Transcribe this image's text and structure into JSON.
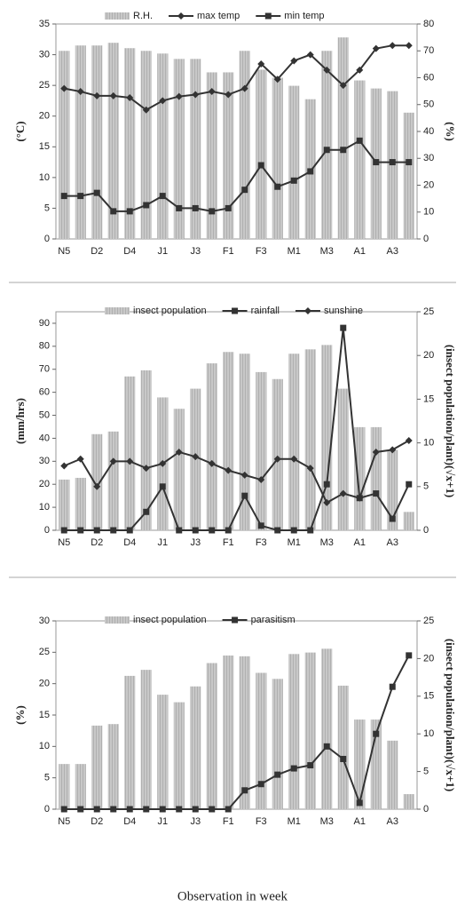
{
  "chart_data": [
    {
      "type": "combo",
      "categories": [
        "N5",
        null,
        "D2",
        null,
        "D4",
        null,
        "J1",
        null,
        "J3",
        null,
        "F1",
        null,
        "F3",
        null,
        "M1",
        null,
        "M3",
        null,
        "A1",
        null,
        "A3",
        null
      ],
      "y_label": "(°C)",
      "y2_label": "(%)",
      "ylim": [
        0,
        35
      ],
      "yticks": [
        0,
        5,
        10,
        15,
        20,
        25,
        30,
        35
      ],
      "y2lim": [
        0,
        80
      ],
      "y2ticks": [
        0,
        10,
        20,
        30,
        40,
        50,
        60,
        70,
        80
      ],
      "series": [
        {
          "name": "R.H.",
          "kind": "bar",
          "axis": "y2",
          "color": "#b5b5b5",
          "values": [
            70,
            72,
            72,
            73,
            71,
            70,
            69,
            67,
            67,
            62,
            62,
            70,
            63,
            60,
            57,
            52,
            70,
            75,
            59,
            56,
            55,
            47
          ]
        },
        {
          "name": "max temp",
          "kind": "line",
          "marker": "diamond",
          "color": "#333333",
          "values": [
            24.5,
            24,
            23.3,
            23.3,
            23,
            21,
            22.5,
            23.2,
            23.5,
            24,
            23.5,
            24.5,
            28.5,
            26,
            29,
            30,
            27.5,
            25,
            27.5,
            31,
            31.5,
            31.5
          ]
        },
        {
          "name": "min temp",
          "kind": "line",
          "marker": "square",
          "color": "#333333",
          "values": [
            7,
            7,
            7.5,
            4.5,
            4.5,
            5.5,
            7,
            5,
            5,
            4.5,
            5,
            8,
            12,
            8.5,
            9.5,
            11,
            14.5,
            14.5,
            16,
            12.5,
            12.5,
            12.5
          ]
        }
      ]
    },
    {
      "type": "combo",
      "categories": [
        "N5",
        null,
        "D2",
        null,
        "D4",
        null,
        "J1",
        null,
        "J3",
        null,
        "F1",
        null,
        "F3",
        null,
        "M1",
        null,
        "M3",
        null,
        "A1",
        null,
        "A3",
        null
      ],
      "y_label": "(mm/hrs)",
      "y2_label": "(insect population/plant)(√x+1)",
      "ylim": [
        0,
        95
      ],
      "yticks": [
        0,
        10,
        20,
        30,
        40,
        50,
        60,
        70,
        80,
        90
      ],
      "y2lim": [
        0,
        25
      ],
      "y2ticks": [
        0,
        5,
        10,
        15,
        20,
        25
      ],
      "series": [
        {
          "name": "insect population",
          "kind": "bar",
          "axis": "y2",
          "color": "#b5b5b5",
          "values": [
            5.8,
            6,
            11,
            11.3,
            17.6,
            18.3,
            15.2,
            13.9,
            16.2,
            19.1,
            20.4,
            20.2,
            18.1,
            17.3,
            20.2,
            20.7,
            21.2,
            16.2,
            11.8,
            11.8,
            9.2,
            2.1
          ]
        },
        {
          "name": "rainfall",
          "kind": "line",
          "marker": "square",
          "color": "#333333",
          "values": [
            0,
            0,
            0,
            0,
            0,
            8,
            19,
            0,
            0,
            0,
            0,
            15,
            2,
            0,
            0,
            0,
            20,
            88,
            14,
            16,
            5,
            20
          ]
        },
        {
          "name": "sunshine",
          "kind": "line",
          "marker": "diamond",
          "color": "#333333",
          "values": [
            28,
            31,
            19,
            30,
            30,
            27,
            29,
            34,
            32,
            29,
            26,
            24,
            22,
            31,
            31,
            27,
            12,
            16,
            14,
            34,
            35,
            39
          ]
        }
      ]
    },
    {
      "type": "combo",
      "categories": [
        "N5",
        null,
        "D2",
        null,
        "D4",
        null,
        "J1",
        null,
        "J3",
        null,
        "F1",
        null,
        "F3",
        null,
        "M1",
        null,
        "M3",
        null,
        "A1",
        null,
        "A3",
        null
      ],
      "y_label": "(%)",
      "y2_label": "(insect population/plant)(√x+1)",
      "ylim": [
        0,
        30
      ],
      "yticks": [
        0,
        5,
        10,
        15,
        20,
        25,
        30
      ],
      "y2lim": [
        0,
        25
      ],
      "y2ticks": [
        0,
        5,
        10,
        15,
        20,
        25
      ],
      "series": [
        {
          "name": "insect population",
          "kind": "bar",
          "axis": "y2",
          "color": "#b5b5b5",
          "values": [
            6,
            6,
            11.1,
            11.3,
            17.7,
            18.5,
            15.2,
            14.2,
            16.3,
            19.4,
            20.4,
            20.3,
            18.1,
            17.3,
            20.6,
            20.8,
            21.3,
            16.4,
            11.9,
            11.9,
            9.1,
            2
          ]
        },
        {
          "name": "parasitism",
          "kind": "line",
          "marker": "square",
          "color": "#333333",
          "values": [
            0,
            0,
            0,
            0,
            0,
            0,
            0,
            0,
            0,
            0,
            0,
            3,
            4,
            5.5,
            6.5,
            7,
            10,
            8,
            1,
            12,
            19.5,
            24.5
          ]
        }
      ]
    }
  ],
  "footer": "Observation in week"
}
